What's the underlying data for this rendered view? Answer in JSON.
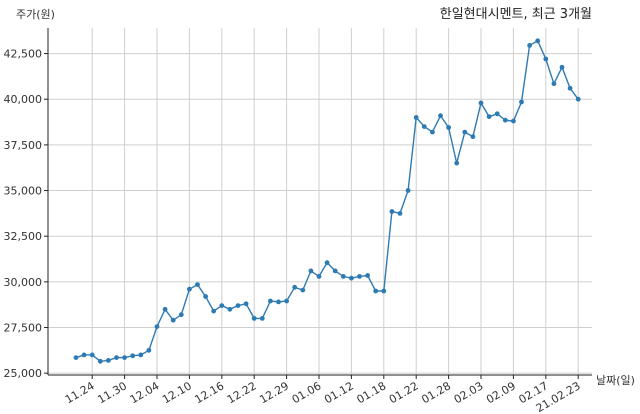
{
  "chart_data": {
    "type": "line",
    "title": "한일현대시멘트, 최근 3개월",
    "ylabel": "주가(원)",
    "xlabel": "날짜(일)",
    "ylim": [
      24900,
      43900
    ],
    "yticks": [
      25000,
      27500,
      30000,
      32500,
      35000,
      37500,
      40000,
      42500
    ],
    "ytick_labels": [
      "25,000",
      "27,500",
      "30,000",
      "32,500",
      "35,000",
      "37,500",
      "40,000",
      "42,500"
    ],
    "x_tick_labels": [
      "11.24",
      "11.30",
      "12.04",
      "12.10",
      "12.16",
      "12.22",
      "12.29",
      "01.06",
      "01.12",
      "01.18",
      "01.22",
      "01.28",
      "02.03",
      "02.09",
      "02.17",
      "21.02.23"
    ],
    "x_tick_index": [
      2,
      6,
      10,
      14,
      18,
      22,
      26,
      30,
      34,
      38,
      42,
      46,
      50,
      54,
      58,
      62
    ],
    "grid": true,
    "series": [
      {
        "values": [
          25850,
          26000,
          26000,
          25650,
          25700,
          25850,
          25850,
          25950,
          26000,
          26250,
          27550,
          28500,
          27900,
          28200,
          29600,
          29850,
          29200,
          28400,
          28700,
          28500,
          28700,
          28800,
          28000,
          28000,
          28950,
          28900,
          28950,
          29700,
          29550,
          30600,
          30300,
          31050,
          30600,
          30300,
          30200,
          30300,
          30350,
          29500,
          29500,
          33850,
          33750,
          35000,
          39000,
          38500,
          38200,
          39100,
          38450,
          36500,
          38200,
          37950,
          39800,
          39050,
          39200,
          38850,
          38800,
          39850,
          42950,
          43200,
          42200,
          40850,
          41750,
          40600,
          40000
        ]
      }
    ]
  }
}
